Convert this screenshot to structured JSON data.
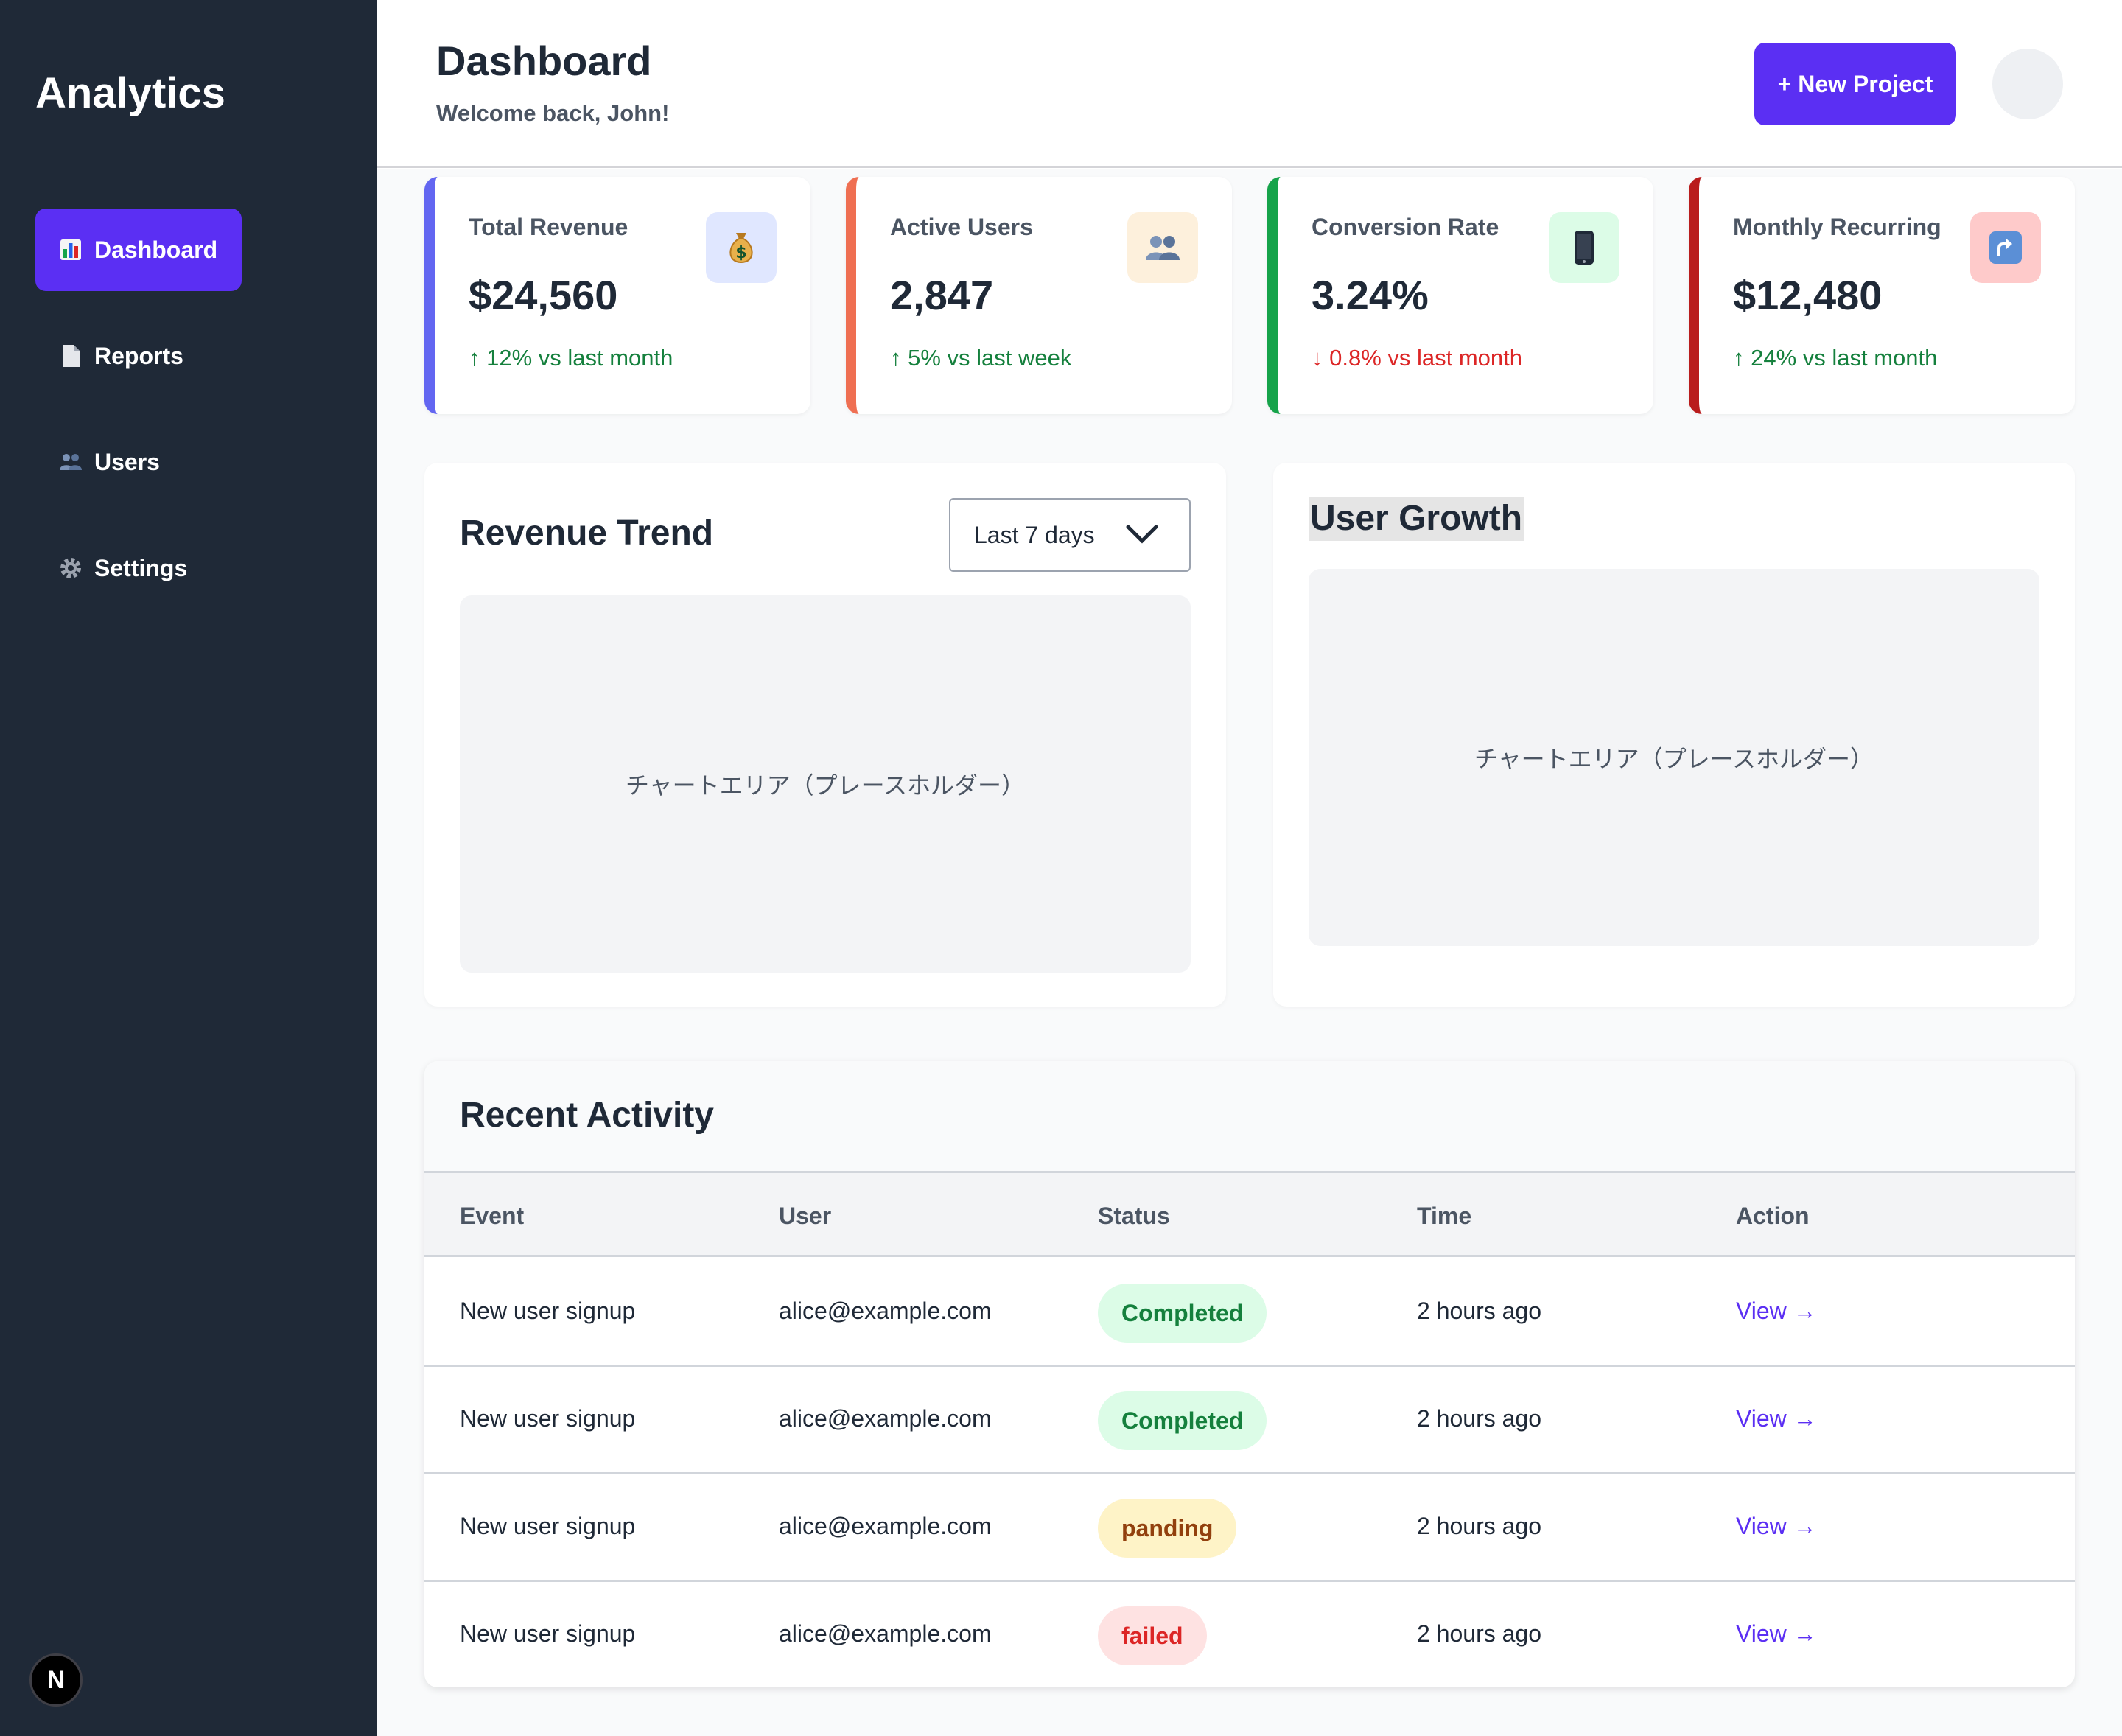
{
  "sidebar": {
    "brand": "Analytics",
    "items": [
      {
        "label": "Dashboard",
        "icon": "bar-chart-icon",
        "active": true
      },
      {
        "label": "Reports",
        "icon": "document-icon",
        "active": false
      },
      {
        "label": "Users",
        "icon": "users-icon",
        "active": false
      },
      {
        "label": "Settings",
        "icon": "gear-icon",
        "active": false
      }
    ],
    "badge": "N"
  },
  "header": {
    "title": "Dashboard",
    "welcome": "Welcome back, John!",
    "new_project_label": "+ New Project"
  },
  "stats": [
    {
      "label": "Total Revenue",
      "value": "$24,560",
      "change": "↑ 12% vs last month",
      "trend": "up",
      "icon": "money-bag-icon",
      "accent": "#6366f1",
      "icon_bg": "#e0e7ff"
    },
    {
      "label": "Active Users",
      "value": "2,847",
      "change": "↑ 5% vs last week",
      "trend": "up",
      "icon": "users-icon",
      "accent": "#ef6f52",
      "icon_bg": "#fdf0dc"
    },
    {
      "label": "Conversion Rate",
      "value": "3.24%",
      "change": "↓ 0.8% vs last month",
      "trend": "down",
      "icon": "phone-icon",
      "accent": "#16a34a",
      "icon_bg": "#dcfce7"
    },
    {
      "label": "Monthly Recurring",
      "value": "$12,480",
      "change": "↑ 24% vs last month",
      "trend": "up",
      "icon": "arrow-up-icon",
      "accent": "#b91c1c",
      "icon_bg": "#fecaca"
    }
  ],
  "revenue_panel": {
    "title": "Revenue Trend",
    "range_selected": "Last 7 days",
    "placeholder": "チャートエリア（プレースホルダー）"
  },
  "growth_panel": {
    "title": "User Growth",
    "placeholder": "チャートエリア（プレースホルダー）"
  },
  "activity": {
    "title": "Recent Activity",
    "columns": [
      "Event",
      "User",
      "Status",
      "Time",
      "Action"
    ],
    "rows": [
      {
        "event": "New user signup",
        "user": "alice@example.com",
        "status": "Completed",
        "status_type": "completed",
        "time": "2 hours ago",
        "action": "View →"
      },
      {
        "event": "New user signup",
        "user": "alice@example.com",
        "status": "Completed",
        "status_type": "completed",
        "time": "2 hours ago",
        "action": "View →"
      },
      {
        "event": "New user signup",
        "user": "alice@example.com",
        "status": "panding",
        "status_type": "pending",
        "time": "2 hours ago",
        "action": "View →"
      },
      {
        "event": "New user signup",
        "user": "alice@example.com",
        "status": "failed",
        "status_type": "failed",
        "time": "2 hours ago",
        "action": "View →"
      }
    ]
  },
  "colors": {
    "primary": "#5b2ff3",
    "sidebar_bg": "#1f2937",
    "success": "#15803d",
    "danger": "#dc2626"
  }
}
